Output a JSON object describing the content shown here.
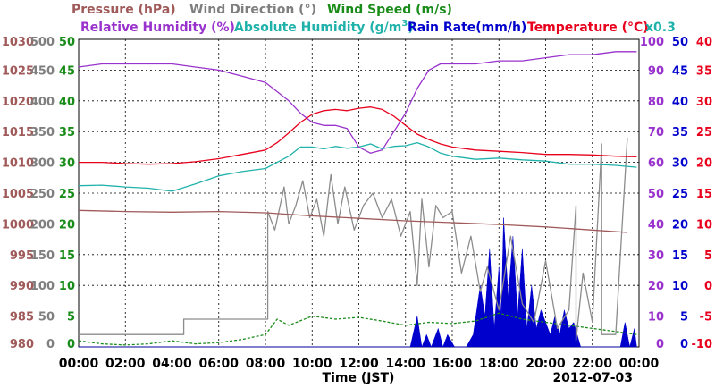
{
  "chart_data": {
    "type": "line",
    "date": "2012-07-03",
    "xlabel": "Time (JST)",
    "x_ticks": [
      "00:00",
      "02:00",
      "04:00",
      "06:00",
      "08:00",
      "10:00",
      "12:00",
      "14:00",
      "16:00",
      "18:00",
      "20:00",
      "22:00",
      "00:00"
    ],
    "grid": true,
    "header_labels": {
      "pressure": "Pressure (hPa)",
      "wind_direction": "Wind Direction (°)",
      "wind_speed": "Wind Speed (m/s)",
      "relative_humidity": "Relative Humidity (%)",
      "absolute_humidity": "Absolute Humidity (g/m",
      "absolute_humidity_sup": "3",
      "absolute_humidity_close": ")",
      "rain_rate": "Rain Rate(mm/h)",
      "temperature": "Temperature (°C)",
      "rain_multiplier": "x0.3"
    },
    "axes": {
      "pressure": {
        "range": [
          980,
          1030
        ],
        "ticks": [
          "1030",
          "1025",
          "1020",
          "1015",
          "1010",
          "1005",
          "1000",
          "995",
          "990",
          "985",
          "980"
        ],
        "color": "#a05a5a"
      },
      "wind_direction": {
        "range": [
          0,
          500
        ],
        "ticks": [
          "500",
          "450",
          "400",
          "350",
          "300",
          "250",
          "200",
          "150",
          "100",
          "50",
          "0"
        ],
        "color": "#7f7f7f"
      },
      "wind_speed": {
        "range": [
          0,
          50
        ],
        "ticks": [
          "50",
          "45",
          "40",
          "35",
          "30",
          "25",
          "20",
          "15",
          "10",
          "5",
          "0"
        ],
        "color": "#1a8c1a"
      },
      "relative_humidity": {
        "range": [
          0,
          100
        ],
        "ticks": [
          "100",
          "90",
          "80",
          "70",
          "60",
          "50",
          "40",
          "30",
          "20",
          "10",
          "0"
        ],
        "color": "#9932cc"
      },
      "rain_rate": {
        "range": [
          0,
          50
        ],
        "ticks": [
          "50",
          "45",
          "40",
          "35",
          "30",
          "25",
          "20",
          "15",
          "10",
          "5",
          "0"
        ],
        "color": "#0000cd"
      },
      "temperature": {
        "range": [
          -10,
          40
        ],
        "ticks": [
          "40",
          "35",
          "30",
          "25",
          "20",
          "15",
          "10",
          "5",
          "0",
          "-5",
          "-10"
        ],
        "color": "#e8001c"
      }
    },
    "series": [
      {
        "name": "Pressure (hPa)",
        "axis": "pressure",
        "color": "#a05a5a",
        "x": [
          0,
          2,
          4,
          6,
          8,
          10,
          12,
          14,
          16,
          18,
          20,
          22,
          23.5
        ],
        "y": [
          1002.2,
          1002.0,
          1001.9,
          1002.0,
          1001.8,
          1001.3,
          1000.9,
          1000.5,
          1000.2,
          999.9,
          999.5,
          999.0,
          998.6
        ]
      },
      {
        "name": "Wind Direction (°)",
        "axis": "wind_direction",
        "color": "#8c8c8c",
        "x": [
          0,
          4.5,
          4.5,
          8.1,
          8.1,
          8.4,
          8.8,
          9.0,
          9.3,
          9.6,
          9.9,
          10.2,
          10.5,
          10.8,
          11.1,
          11.4,
          11.8,
          12.2,
          12.6,
          13.0,
          13.4,
          13.8,
          14.2,
          14.5,
          14.7,
          15.0,
          15.3,
          15.6,
          16.0,
          16.4,
          16.8,
          17.2,
          17.5,
          18.0,
          18.5,
          19.0,
          19.5,
          20.0,
          20.5,
          21.0,
          21.3,
          21.3,
          21.6,
          22.0,
          22.4,
          22.4,
          23.0,
          23.5
        ],
        "y": [
          20,
          20,
          45,
          45,
          220,
          190,
          260,
          200,
          230,
          270,
          210,
          240,
          180,
          280,
          200,
          260,
          190,
          230,
          250,
          210,
          240,
          180,
          220,
          100,
          240,
          130,
          230,
          210,
          220,
          120,
          180,
          90,
          130,
          60,
          180,
          70,
          40,
          140,
          30,
          60,
          230,
          10,
          120,
          40,
          330,
          20,
          20,
          340
        ]
      },
      {
        "name": "Wind Speed (m/s)",
        "axis": "wind_speed",
        "color": "#1a8c1a",
        "x": [
          0,
          1,
          2,
          3,
          4,
          5,
          6,
          7,
          8,
          8.5,
          9,
          10,
          11,
          12,
          13,
          14,
          15,
          16,
          17,
          18,
          19,
          20,
          21,
          22,
          23,
          23.9
        ],
        "y": [
          1.0,
          0.5,
          0.3,
          0.5,
          1.0,
          0.5,
          0.7,
          1.2,
          2.0,
          4.5,
          3.5,
          5.0,
          4.5,
          4.8,
          4.2,
          3.5,
          4.0,
          3.8,
          4.2,
          5.5,
          4.5,
          4.0,
          3.5,
          3.0,
          2.5,
          2.0
        ]
      },
      {
        "name": "Relative Humidity (%)",
        "axis": "relative_humidity",
        "color": "#9932cc",
        "x": [
          0,
          1,
          2,
          3,
          4,
          5,
          6,
          7,
          8,
          8.5,
          9,
          9.5,
          10,
          10.5,
          11,
          11.5,
          12,
          12.5,
          13,
          13.5,
          14,
          14.5,
          15,
          15.5,
          16,
          17,
          18,
          19,
          20,
          21,
          22,
          23,
          23.9
        ],
        "y": [
          91,
          92,
          92,
          92,
          92,
          91,
          90,
          88,
          86,
          83,
          80,
          76,
          73,
          72,
          72,
          71,
          65,
          63,
          64,
          70,
          76,
          84,
          90,
          92,
          92,
          92,
          93,
          93,
          94,
          95,
          95,
          96,
          96
        ]
      },
      {
        "name": "Absolute Humidity (g/m3)",
        "axis": "wind_speed",
        "color": "#20b2aa",
        "x": [
          0,
          1,
          2,
          3,
          4,
          5,
          6,
          7,
          8,
          8.5,
          9,
          9.5,
          10,
          10.5,
          11,
          11.5,
          12,
          12.5,
          13,
          13.5,
          14,
          14.5,
          15,
          15.5,
          16,
          17,
          18,
          19,
          20,
          21,
          22,
          23,
          23.9
        ],
        "y": [
          26.2,
          26.3,
          26.0,
          25.8,
          25.3,
          26.5,
          27.8,
          28.5,
          29.0,
          30.0,
          31.0,
          32.5,
          32.5,
          32.2,
          32.6,
          32.3,
          32.5,
          33.0,
          32.2,
          32.6,
          32.7,
          33.2,
          32.5,
          31.5,
          31.0,
          30.5,
          30.7,
          30.4,
          30.2,
          29.7,
          29.7,
          29.5,
          29.2
        ]
      },
      {
        "name": "Rain Rate(mm/h)",
        "axis": "rain_rate",
        "color": "#0000cd",
        "fill": true,
        "x": [
          0,
          14.2,
          14.5,
          14.7,
          14.9,
          15.1,
          15.4,
          15.6,
          15.8,
          16.1,
          16.6,
          16.9,
          17.2,
          17.4,
          17.6,
          17.8,
          18.0,
          18.1,
          18.2,
          18.4,
          18.6,
          18.8,
          19.0,
          19.2,
          19.4,
          19.6,
          19.8,
          20.0,
          20.2,
          20.4,
          20.6,
          20.8,
          21.0,
          21.2,
          21.5,
          21.8,
          23.2,
          23.4,
          23.6,
          23.8,
          23.9
        ],
        "y": [
          0,
          0,
          5,
          0,
          2,
          0,
          3,
          0,
          2,
          0,
          0,
          2,
          10,
          5,
          16,
          3,
          13,
          5,
          21,
          8,
          18,
          5,
          16,
          3,
          10,
          3,
          6,
          4,
          2,
          5,
          2,
          6,
          3,
          4,
          0,
          0,
          0,
          4,
          0,
          3,
          0
        ]
      },
      {
        "name": "Temperature (°C)",
        "axis": "temperature",
        "color": "#e8001c",
        "x": [
          0,
          1,
          2,
          3,
          4,
          5,
          6,
          7,
          8,
          8.5,
          9,
          9.5,
          10,
          10.5,
          11,
          11.5,
          12,
          12.5,
          13,
          13.5,
          14,
          14.5,
          15,
          15.5,
          16,
          17,
          18,
          19,
          20,
          21,
          22,
          23,
          23.9
        ],
        "y": [
          20.0,
          20.0,
          19.8,
          19.7,
          19.8,
          20.1,
          20.6,
          21.3,
          22.0,
          23.2,
          24.8,
          26.5,
          27.8,
          28.4,
          28.6,
          28.4,
          28.8,
          29.0,
          28.6,
          27.5,
          26.0,
          24.6,
          23.7,
          23.0,
          22.5,
          22.0,
          21.8,
          21.6,
          21.3,
          21.3,
          21.2,
          21.0,
          20.9
        ]
      }
    ]
  }
}
